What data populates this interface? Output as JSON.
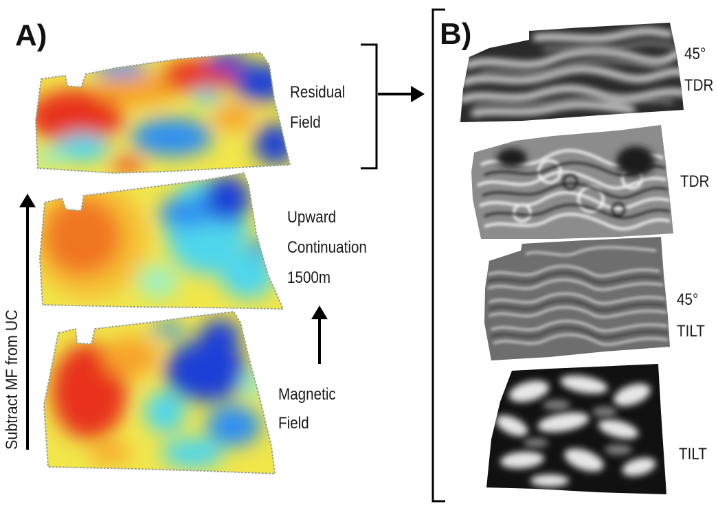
{
  "panels": {
    "a": {
      "letter": "A)",
      "residual_label_1": "Residual",
      "residual_label_2": "Field",
      "upward_label_1": "Upward",
      "upward_label_2": "Continuation",
      "upward_label_3": "1500m",
      "magnetic_label_1": "Magnetic",
      "magnetic_label_2": "Field",
      "vertical_label": "Subtract MF from UC"
    },
    "b": {
      "letter": "B)",
      "tdr45_label_1": "45°",
      "tdr45_label_2": "TDR",
      "tdr_label": "TDR",
      "tilt45_label_1": "45°",
      "tilt45_label_2": "TILT",
      "tilt_label": "TILT"
    }
  },
  "colors": {
    "colormap": [
      "#1e3fd6",
      "#2f8ff0",
      "#4fd6ec",
      "#9ff1c0",
      "#f4f04a",
      "#f7a42a",
      "#e8331c"
    ],
    "arrow": "#000000",
    "map_border": "#9aa08f"
  }
}
